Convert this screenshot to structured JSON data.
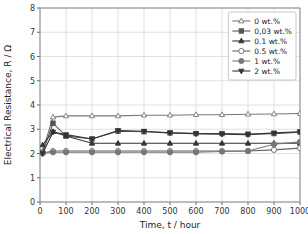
{
  "chart_data": {
    "type": "line",
    "xlabel": "Time, t / hour",
    "ylabel": "Electrical Resistance, R / Ω",
    "xlim": [
      0,
      1000
    ],
    "ylim": [
      0,
      8
    ],
    "xticks": [
      0,
      100,
      200,
      300,
      400,
      500,
      600,
      700,
      800,
      900,
      1000
    ],
    "yticks": [
      0,
      1,
      2,
      3,
      4,
      5,
      6,
      7,
      8
    ],
    "grid": true,
    "legend": "upper right",
    "x": [
      10,
      50,
      100,
      200,
      300,
      400,
      500,
      600,
      700,
      800,
      900,
      1000
    ],
    "series": [
      {
        "name": "0 wt.%",
        "color": "#777777",
        "marker": "triangle-up-open",
        "line_style": "solid",
        "values": [
          2.1,
          3.5,
          3.55,
          3.55,
          3.55,
          3.58,
          3.58,
          3.6,
          3.6,
          3.62,
          3.63,
          3.65
        ]
      },
      {
        "name": "0,03 wt.%",
        "color": "#555555",
        "marker": "square",
        "line_style": "solid",
        "values": [
          2.05,
          3.25,
          2.72,
          2.6,
          2.92,
          2.9,
          2.85,
          2.82,
          2.82,
          2.8,
          2.82,
          2.88
        ]
      },
      {
        "name": "0.1 wt.%",
        "color": "#333333",
        "marker": "triangle-up",
        "line_style": "solid",
        "values": [
          2.35,
          2.9,
          2.72,
          2.42,
          2.42,
          2.42,
          2.42,
          2.42,
          2.42,
          2.42,
          2.42,
          2.42
        ]
      },
      {
        "name": "0.5 wt.%",
        "color": "#666666",
        "marker": "circle-open",
        "line_style": "solid",
        "values": [
          2.02,
          2.1,
          2.1,
          2.1,
          2.1,
          2.1,
          2.1,
          2.1,
          2.1,
          2.1,
          2.15,
          2.22
        ]
      },
      {
        "name": "1 wt.%",
        "color": "#777777",
        "marker": "circle",
        "line_style": "solid",
        "values": [
          2.0,
          2.05,
          2.05,
          2.05,
          2.05,
          2.05,
          2.05,
          2.05,
          2.08,
          2.1,
          2.38,
          2.48
        ]
      },
      {
        "name": "2 wt.%",
        "color": "#333333",
        "marker": "triangle-down",
        "line_style": "solid",
        "values": [
          2.0,
          2.88,
          2.78,
          2.6,
          2.95,
          2.92,
          2.85,
          2.82,
          2.8,
          2.78,
          2.85,
          2.9
        ]
      }
    ]
  }
}
